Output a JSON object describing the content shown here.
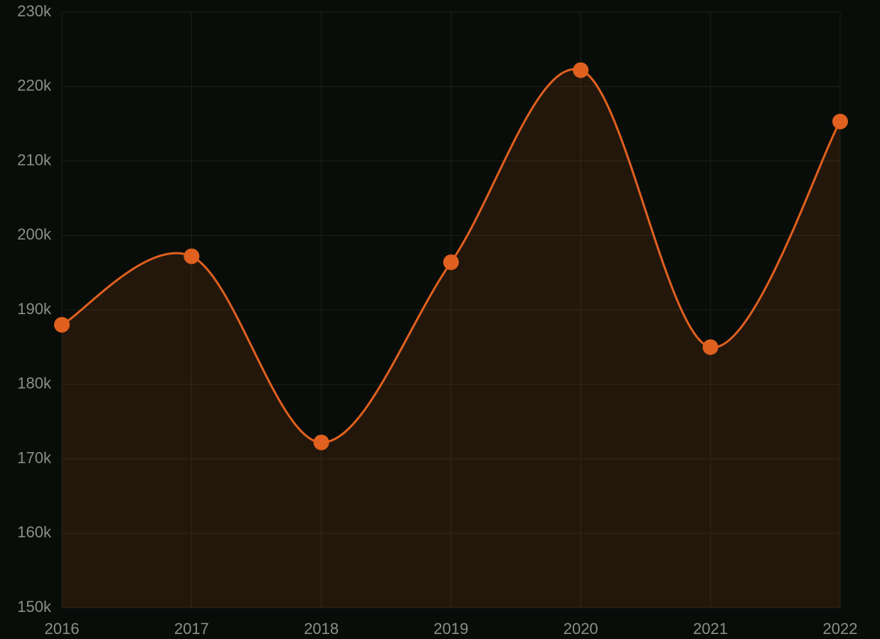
{
  "chart_data": {
    "type": "area",
    "categories": [
      "2016",
      "2017",
      "2018",
      "2019",
      "2020",
      "2021",
      "2022"
    ],
    "series": [
      {
        "color": "#e0601f",
        "values": [
          188000,
          197200,
          172200,
          196400,
          222200,
          185000,
          215300
        ]
      }
    ],
    "ylim": [
      150000,
      230000
    ],
    "yticks": [
      {
        "value": 150000,
        "label": "150k"
      },
      {
        "value": 160000,
        "label": "160k"
      },
      {
        "value": 170000,
        "label": "170k"
      },
      {
        "value": 180000,
        "label": "180k"
      },
      {
        "value": 190000,
        "label": "190k"
      },
      {
        "value": 200000,
        "label": "200k"
      },
      {
        "value": 210000,
        "label": "210k"
      },
      {
        "value": 220000,
        "label": "220k"
      },
      {
        "value": 230000,
        "label": "230k"
      }
    ],
    "grid": true
  }
}
